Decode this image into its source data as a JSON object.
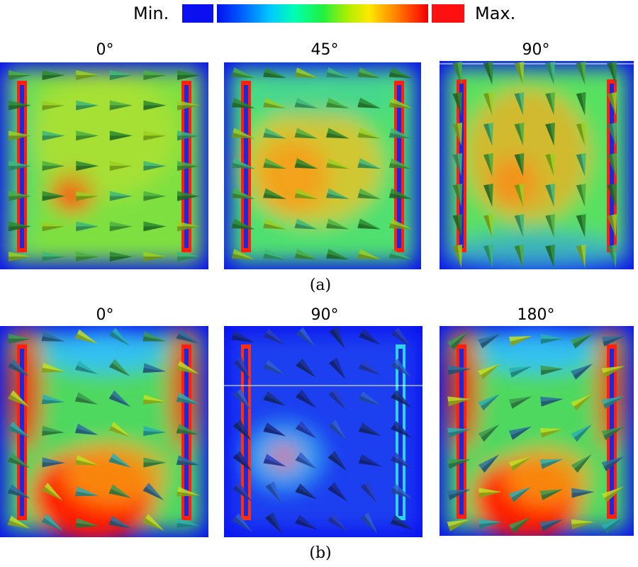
{
  "colorbar": {
    "min_label": "Min.",
    "max_label": "Max."
  },
  "rows": [
    {
      "label": "(a)",
      "panels": [
        {
          "title": "0°"
        },
        {
          "title": "45°"
        },
        {
          "title": "90°"
        }
      ]
    },
    {
      "label": "(b)",
      "panels": [
        {
          "title": "0°"
        },
        {
          "title": "90°"
        },
        {
          "title": "180°"
        }
      ]
    }
  ],
  "colors": {
    "min": "#0010f0",
    "max": "#ff1010",
    "background_field": "#0a10f0"
  }
}
